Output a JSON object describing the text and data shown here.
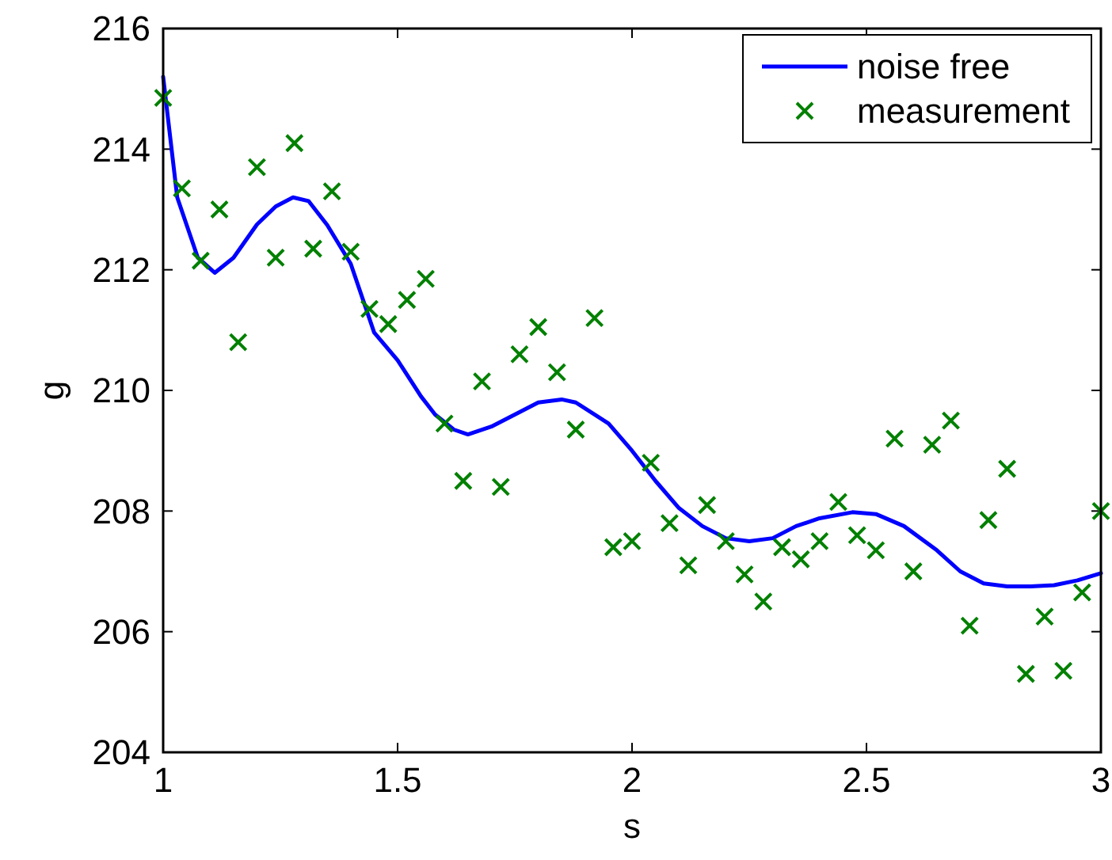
{
  "chart_data": {
    "type": "line",
    "xlabel": "s",
    "ylabel": "g",
    "xlim": [
      1,
      3
    ],
    "ylim": [
      204,
      216
    ],
    "xticks": [
      1,
      1.5,
      2,
      2.5,
      3
    ],
    "yticks": [
      204,
      206,
      208,
      210,
      212,
      214,
      216
    ],
    "grid": false,
    "legend": "top right",
    "series": [
      {
        "name": "noise free",
        "color": "#0000ff",
        "marker": "none",
        "line_style": "solid",
        "x": [
          1,
          1.03,
          1.074,
          1.11,
          1.15,
          1.2,
          1.24,
          1.277,
          1.31,
          1.35,
          1.4,
          1.45,
          1.5,
          1.55,
          1.58,
          1.62,
          1.65,
          1.7,
          1.75,
          1.8,
          1.85,
          1.88,
          1.95,
          2,
          2.05,
          2.1,
          2.15,
          2.2,
          2.25,
          2.3,
          2.35,
          2.4,
          2.47,
          2.52,
          2.58,
          2.65,
          2.7,
          2.75,
          2.8,
          2.85,
          2.9,
          2.95,
          3
        ],
        "values": [
          215.2,
          213.2,
          212.2,
          211.95,
          212.2,
          212.75,
          213.05,
          213.2,
          213.14,
          212.74,
          212.1,
          210.96,
          210.5,
          209.9,
          209.6,
          209.35,
          209.27,
          209.4,
          209.6,
          209.8,
          209.85,
          209.8,
          209.45,
          209,
          208.5,
          208.05,
          207.75,
          207.55,
          207.5,
          207.55,
          207.75,
          207.88,
          207.98,
          207.95,
          207.75,
          207.35,
          207,
          206.8,
          206.75,
          206.75,
          206.77,
          206.85,
          206.97
        ]
      },
      {
        "name": "measurement",
        "type": "scatter",
        "color": "#008000",
        "marker": "cross",
        "x": [
          1,
          1.04,
          1.08,
          1.12,
          1.16,
          1.2,
          1.24,
          1.28,
          1.32,
          1.36,
          1.4,
          1.44,
          1.48,
          1.52,
          1.56,
          1.6,
          1.64,
          1.68,
          1.72,
          1.76,
          1.8,
          1.84,
          1.88,
          1.92,
          1.96,
          2,
          2.04,
          2.08,
          2.12,
          2.16,
          2.2,
          2.24,
          2.28,
          2.32,
          2.36,
          2.4,
          2.44,
          2.48,
          2.52,
          2.56,
          2.6,
          2.64,
          2.68,
          2.72,
          2.76,
          2.8,
          2.84,
          2.88,
          2.92,
          2.96,
          3
        ],
        "values": [
          214.85,
          213.35,
          212.15,
          213,
          210.8,
          213.7,
          212.2,
          214.1,
          212.35,
          213.3,
          212.3,
          211.35,
          211.1,
          211.5,
          211.85,
          209.45,
          208.5,
          210.15,
          208.4,
          210.6,
          211.05,
          210.3,
          209.35,
          211.2,
          207.4,
          207.5,
          208.8,
          207.8,
          207.1,
          208.1,
          207.5,
          206.95,
          206.5,
          207.4,
          207.2,
          207.5,
          208.15,
          207.6,
          207.35,
          209.2,
          207,
          209.1,
          209.5,
          206.1,
          207.85,
          208.7,
          205.3,
          206.25,
          205.35,
          206.65,
          208
        ]
      }
    ]
  }
}
